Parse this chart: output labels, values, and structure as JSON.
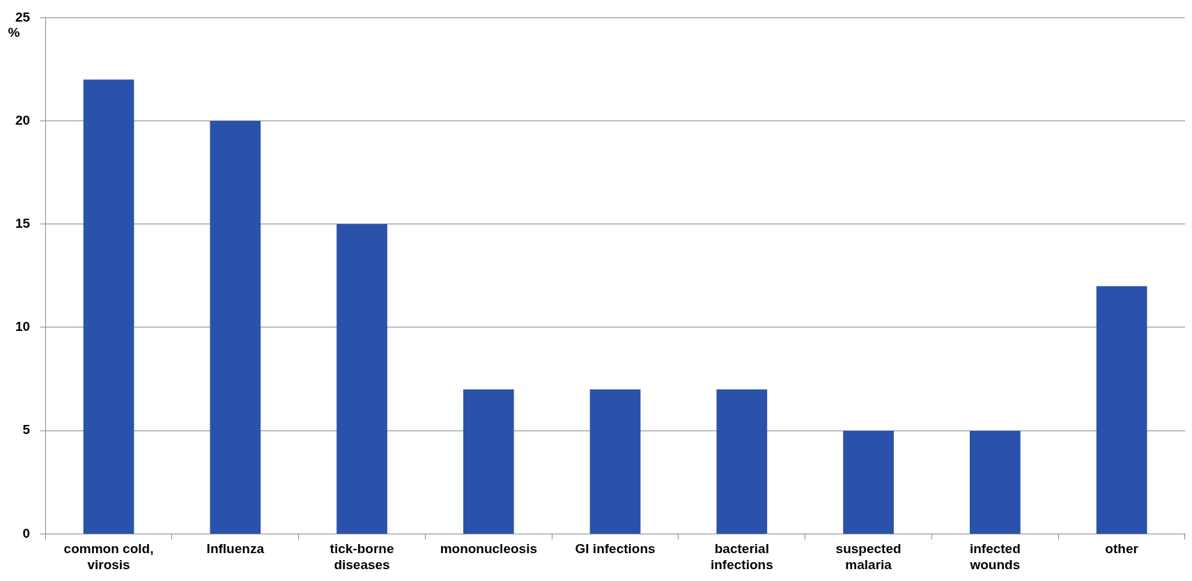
{
  "chart_data": {
    "type": "bar",
    "ylabel": "%",
    "categories": [
      "common cold, virosis",
      "Influenza",
      "tick-borne diseases",
      "mononucleosis",
      "GI infections",
      "bacterial infections",
      "suspected malaria",
      "infected wounds",
      "other"
    ],
    "values": [
      22,
      20,
      15,
      7,
      7,
      7,
      5,
      5,
      12
    ],
    "color": "#2a52ab",
    "ylim": [
      0,
      25
    ],
    "yticks": [
      0,
      5,
      10,
      15,
      20,
      25
    ],
    "grid": "y",
    "legend": false
  }
}
